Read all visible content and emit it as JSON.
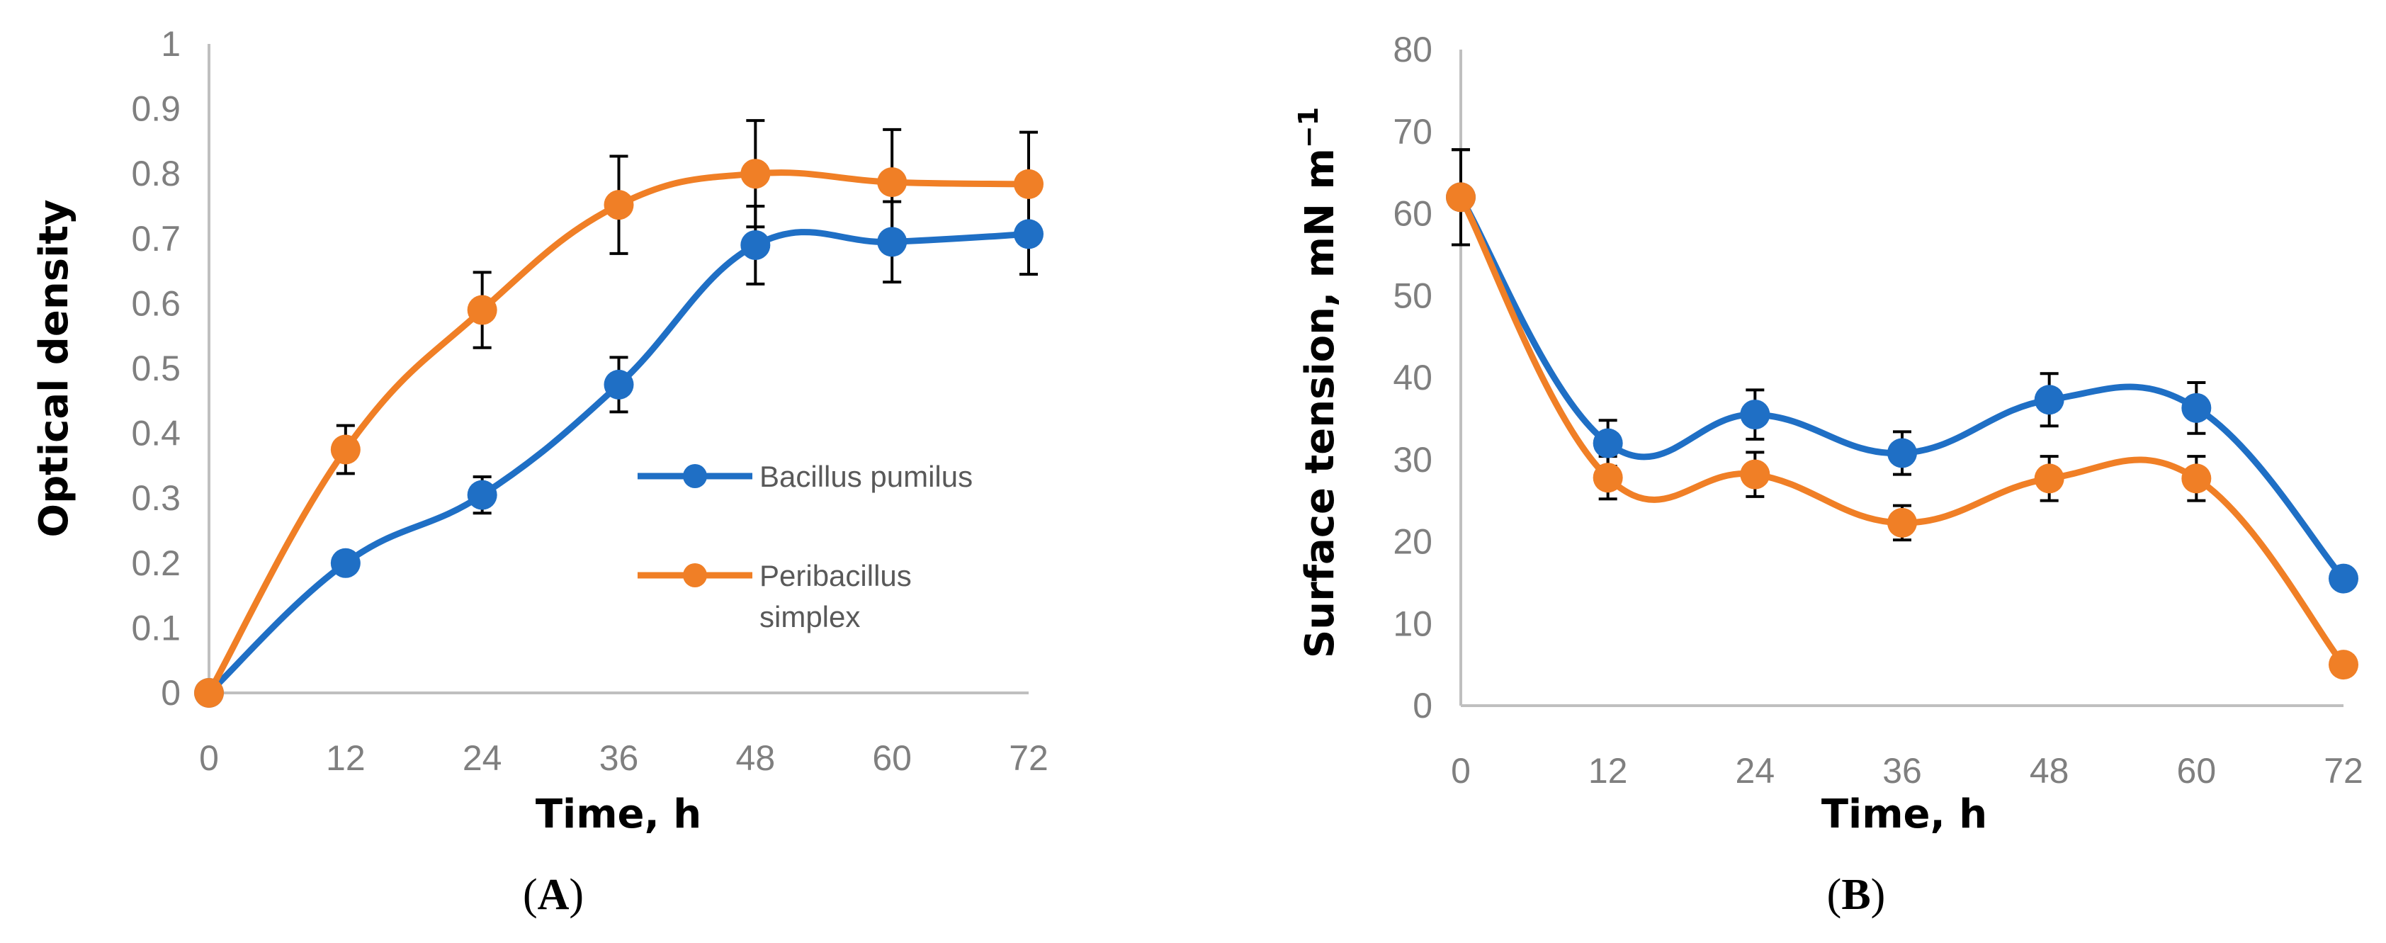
{
  "chart_data": [
    {
      "panel": "A",
      "type": "line",
      "title": "",
      "xlabel": "Time, h",
      "ylabel": "Optical density",
      "categories": [
        "0",
        "12",
        "24",
        "36",
        "48",
        "60",
        "72"
      ],
      "x": [
        0,
        12,
        24,
        36,
        48,
        60,
        72
      ],
      "ylim": [
        0,
        1
      ],
      "yticks": [
        "0",
        "0.1",
        "0.2",
        "0.3",
        "0.4",
        "0.5",
        "0.6",
        "0.7",
        "0.8",
        "0.9",
        "1"
      ],
      "legend": true,
      "legend_position": "center-right",
      "series": [
        {
          "name": "Bacillus pumilus",
          "color": "#1f6fc5",
          "values": [
            0,
            0.2,
            0.305,
            0.475,
            0.69,
            0.695,
            0.707
          ],
          "errors": [
            0,
            0.015,
            0.028,
            0.042,
            0.06,
            0.062,
            0.062
          ]
        },
        {
          "name": "Peribacillus simplex",
          "color": "#f07f26",
          "values": [
            0,
            0.375,
            0.59,
            0.752,
            0.8,
            0.787,
            0.784
          ],
          "errors": [
            0,
            0.037,
            0.058,
            0.075,
            0.082,
            0.081,
            0.08
          ]
        }
      ]
    },
    {
      "panel": "B",
      "type": "line",
      "title": "",
      "xlabel": "Time, h",
      "ylabel": "Surface tension, mN m",
      "ylabel_sup": "−1",
      "categories": [
        "0",
        "12",
        "24",
        "36",
        "48",
        "60",
        "72"
      ],
      "x": [
        0,
        12,
        24,
        36,
        48,
        60,
        72
      ],
      "ylim": [
        0,
        80
      ],
      "yticks": [
        "0",
        "10",
        "20",
        "30",
        "40",
        "50",
        "60",
        "70",
        "80"
      ],
      "legend": false,
      "series": [
        {
          "name": "Bacillus pumilus",
          "color": "#1f6fc5",
          "values": [
            62,
            32,
            35.5,
            30.8,
            37.3,
            36.3,
            15.5
          ],
          "errors": [
            5.8,
            2.8,
            3,
            2.6,
            3.2,
            3.1,
            0
          ]
        },
        {
          "name": "Peribacillus simplex",
          "color": "#f07f26",
          "values": [
            62,
            27.8,
            28.2,
            22.3,
            27.7,
            27.7,
            5
          ],
          "errors": [
            5.8,
            2.6,
            2.7,
            2.1,
            2.7,
            2.7,
            0
          ]
        }
      ]
    }
  ],
  "panel_labels": {
    "a_letter": "A",
    "b_letter": "B"
  }
}
